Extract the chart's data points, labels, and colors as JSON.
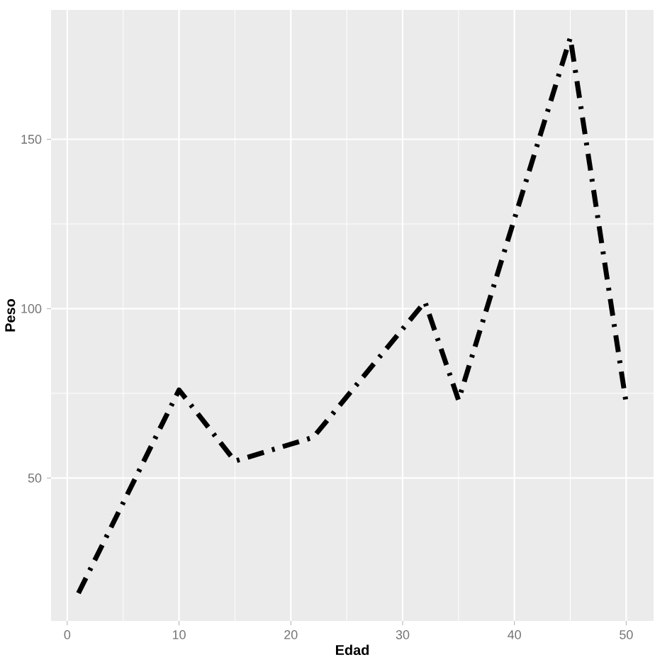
{
  "chart_data": {
    "type": "line",
    "xlabel": "Edad",
    "ylabel": "Peso",
    "x": [
      1,
      10,
      15,
      22,
      32,
      35,
      45,
      50
    ],
    "values": [
      16,
      76,
      55,
      62,
      102,
      73,
      180,
      72
    ],
    "color": "#000000",
    "line_style": "dashdot",
    "marker": "none",
    "grid": true,
    "xlim": [
      -1.45,
      52.45
    ],
    "ylim": [
      7.8,
      188.2
    ],
    "xticks": [
      0,
      10,
      20,
      30,
      40,
      50
    ],
    "yticks": [
      50,
      100,
      150
    ]
  }
}
